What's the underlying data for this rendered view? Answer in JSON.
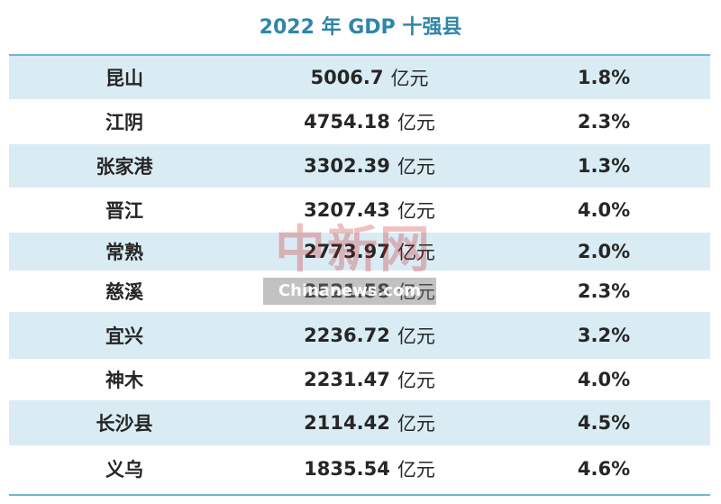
{
  "title": "2022 年 GDP 十强县",
  "watermark": {
    "logo_text": "中新网",
    "url": "Chinanews.com"
  },
  "chart_data": {
    "type": "table",
    "title": "2022 年 GDP 十强县",
    "value_unit": "亿元",
    "rows": [
      {
        "county": "昆山",
        "gdp": "5006.7",
        "unit": "亿元",
        "growth": "1.8%"
      },
      {
        "county": "江阴",
        "gdp": "4754.18",
        "unit": "亿元",
        "growth": "2.3%"
      },
      {
        "county": "张家港",
        "gdp": "3302.39",
        "unit": "亿元",
        "growth": "1.3%"
      },
      {
        "county": "晋江",
        "gdp": "3207.43",
        "unit": "亿元",
        "growth": "4.0%"
      },
      {
        "county": "常熟",
        "gdp": "2773.97",
        "unit": "亿元",
        "growth": "2.0%"
      },
      {
        "county": "慈溪",
        "gdp": "2521.58",
        "unit": "亿元",
        "growth": "2.3%"
      },
      {
        "county": "宜兴",
        "gdp": "2236.72",
        "unit": "亿元",
        "growth": "3.2%"
      },
      {
        "county": "神木",
        "gdp": "2231.47",
        "unit": "亿元",
        "growth": "4.0%"
      },
      {
        "county": "长沙县",
        "gdp": "2114.42",
        "unit": "亿元",
        "growth": "4.5%"
      },
      {
        "county": "义乌",
        "gdp": "1835.54",
        "unit": "亿元",
        "growth": "4.6%"
      }
    ]
  }
}
